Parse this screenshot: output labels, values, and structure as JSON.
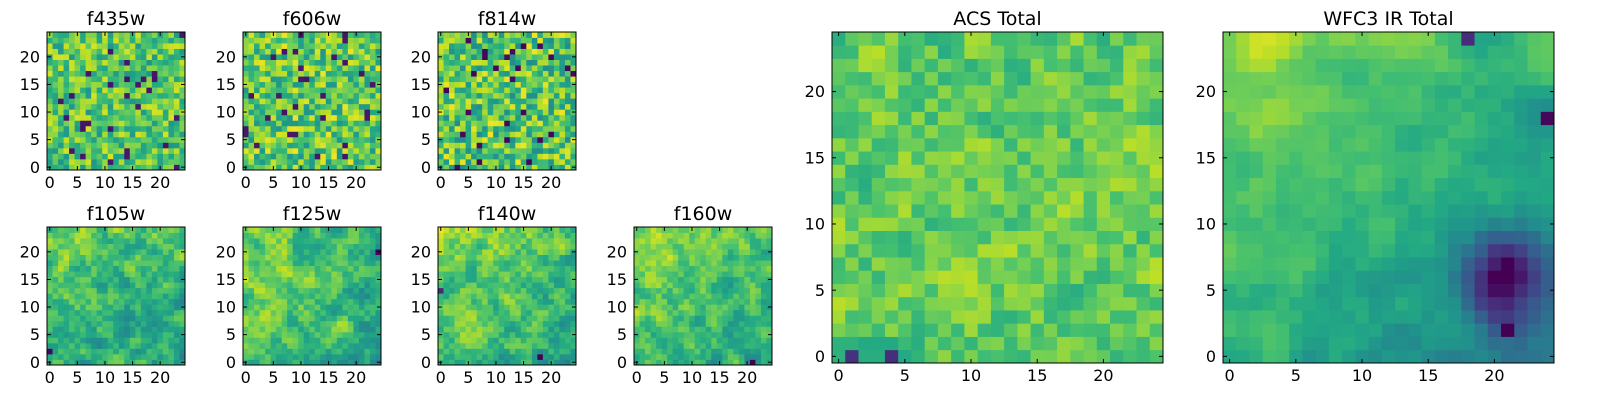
{
  "chart_data": [
    {
      "type": "heatmap",
      "title": "f435w",
      "xlim": [
        0,
        25
      ],
      "ylim": [
        0,
        25
      ],
      "xticks": [
        0,
        5,
        10,
        15,
        20
      ],
      "yticks": [
        0,
        5,
        10,
        15,
        20
      ],
      "grid": false,
      "colormap": "viridis",
      "field": {
        "seed": 11,
        "smooth": 0.0,
        "gx": 0.0,
        "gy": 0.0,
        "bias": 0.72,
        "noise": 0.22
      }
    },
    {
      "type": "heatmap",
      "title": "f606w",
      "xlim": [
        0,
        25
      ],
      "ylim": [
        0,
        25
      ],
      "xticks": [
        0,
        5,
        10,
        15,
        20
      ],
      "yticks": [
        0,
        5,
        10,
        15,
        20
      ],
      "grid": false,
      "colormap": "viridis",
      "field": {
        "seed": 23,
        "smooth": 0.0,
        "gx": 0.0,
        "gy": 0.0,
        "bias": 0.74,
        "noise": 0.24
      }
    },
    {
      "type": "heatmap",
      "title": "f814w",
      "xlim": [
        0,
        25
      ],
      "ylim": [
        0,
        25
      ],
      "xticks": [
        0,
        5,
        10,
        15,
        20
      ],
      "yticks": [
        0,
        5,
        10,
        15,
        20
      ],
      "grid": false,
      "colormap": "viridis",
      "field": {
        "seed": 37,
        "smooth": 0.0,
        "gx": 0.0,
        "gy": 0.0,
        "bias": 0.72,
        "noise": 0.26
      }
    },
    {
      "type": "heatmap",
      "title": "f105w",
      "xlim": [
        0,
        25
      ],
      "ylim": [
        0,
        25
      ],
      "xticks": [
        0,
        5,
        10,
        15,
        20
      ],
      "yticks": [
        0,
        5,
        10,
        15,
        20
      ],
      "grid": false,
      "colormap": "viridis",
      "field": {
        "seed": 41,
        "smooth": 0.45,
        "gx": -0.12,
        "gy": 0.12,
        "bias": 0.68,
        "noise": 0.22
      }
    },
    {
      "type": "heatmap",
      "title": "f125w",
      "xlim": [
        0,
        25
      ],
      "ylim": [
        0,
        25
      ],
      "xticks": [
        0,
        5,
        10,
        15,
        20
      ],
      "yticks": [
        0,
        5,
        10,
        15,
        20
      ],
      "grid": false,
      "colormap": "viridis",
      "field": {
        "seed": 53,
        "smooth": 0.4,
        "gx": -0.1,
        "gy": 0.08,
        "bias": 0.7,
        "noise": 0.22
      }
    },
    {
      "type": "heatmap",
      "title": "f140w",
      "xlim": [
        0,
        25
      ],
      "ylim": [
        0,
        25
      ],
      "xticks": [
        0,
        5,
        10,
        15,
        20
      ],
      "yticks": [
        0,
        5,
        10,
        15,
        20
      ],
      "grid": false,
      "colormap": "viridis",
      "field": {
        "seed": 67,
        "smooth": 0.45,
        "gx": -0.14,
        "gy": 0.12,
        "bias": 0.7,
        "noise": 0.2
      }
    },
    {
      "type": "heatmap",
      "title": "f160w",
      "xlim": [
        0,
        25
      ],
      "ylim": [
        0,
        25
      ],
      "xticks": [
        0,
        5,
        10,
        15,
        20
      ],
      "yticks": [
        0,
        5,
        10,
        15,
        20
      ],
      "grid": false,
      "colormap": "viridis",
      "field": {
        "seed": 79,
        "smooth": 0.45,
        "gx": -0.16,
        "gy": 0.12,
        "bias": 0.7,
        "noise": 0.2
      }
    },
    {
      "type": "heatmap",
      "title": "ACS Total",
      "xlim": [
        0,
        25
      ],
      "ylim": [
        0,
        25
      ],
      "xticks": [
        0,
        5,
        10,
        15,
        20
      ],
      "yticks": [
        0,
        5,
        10,
        15,
        20
      ],
      "grid": false,
      "colormap": "viridis",
      "field": {
        "seed": 97,
        "smooth": 0.2,
        "gx": 0.0,
        "gy": 0.0,
        "bias": 0.74,
        "noise": 0.16
      }
    },
    {
      "type": "heatmap",
      "title": "WFC3 IR Total",
      "xlim": [
        0,
        25
      ],
      "ylim": [
        0,
        25
      ],
      "xticks": [
        0,
        5,
        10,
        15,
        20
      ],
      "yticks": [
        0,
        5,
        10,
        15,
        20
      ],
      "grid": false,
      "colormap": "viridis",
      "field": {
        "seed": 113,
        "smooth": 0.7,
        "gx": -0.22,
        "gy": 0.22,
        "bias": 0.64,
        "noise": 0.12,
        "dark": [
          21,
          6,
          3.2,
          0.55
        ]
      }
    }
  ]
}
